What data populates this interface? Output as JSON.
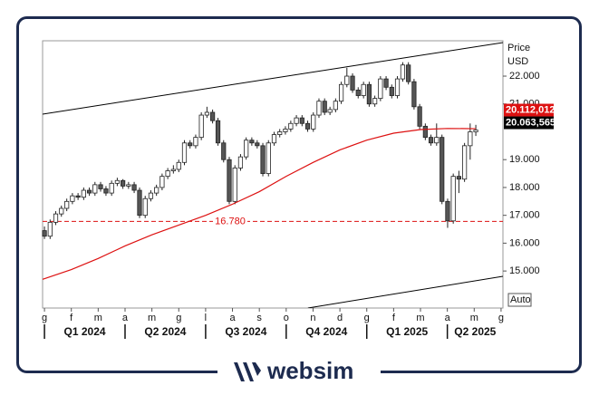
{
  "chart_data": {
    "type": "candlestick",
    "axis_labels": [
      "Price",
      "USD"
    ],
    "scale_mode": "Auto",
    "xlim": [
      -0.07,
      17.07
    ],
    "xticks": [
      {
        "value": 0,
        "label": "g"
      },
      {
        "value": 1,
        "label": "f"
      },
      {
        "value": 2,
        "label": "m"
      },
      {
        "value": 3,
        "label": "a"
      },
      {
        "value": 4,
        "label": "m"
      },
      {
        "value": 5,
        "label": "g"
      },
      {
        "value": 6,
        "label": "l"
      },
      {
        "value": 7,
        "label": "a"
      },
      {
        "value": 8,
        "label": "s"
      },
      {
        "value": 9,
        "label": "o"
      },
      {
        "value": 10,
        "label": "n"
      },
      {
        "value": 11,
        "label": "d"
      },
      {
        "value": 12,
        "label": "g"
      },
      {
        "value": 13,
        "label": "f"
      },
      {
        "value": 14,
        "label": "m"
      },
      {
        "value": 15,
        "label": "a"
      },
      {
        "value": 16,
        "label": "m"
      },
      {
        "value": 17,
        "label": "g"
      }
    ],
    "quarters": [
      {
        "value": 0,
        "label": "Q1 2024"
      },
      {
        "value": 3,
        "label": "Q2 2024"
      },
      {
        "value": 6,
        "label": "Q3 2024"
      },
      {
        "value": 9,
        "label": "Q4 2024"
      },
      {
        "value": 12,
        "label": "Q1 2025"
      },
      {
        "value": 15,
        "label": "Q2 2025"
      }
    ],
    "ylim": [
      13670,
      23270
    ],
    "yticks": [
      {
        "value": 15000,
        "label": "15.000"
      },
      {
        "value": 16000,
        "label": "16.000"
      },
      {
        "value": 17000,
        "label": "17.000"
      },
      {
        "value": 18000,
        "label": "18.000"
      },
      {
        "value": 19000,
        "label": "19.000"
      },
      {
        "value": 21000,
        "label": "21.000"
      },
      {
        "value": 22000,
        "label": "22.000"
      }
    ],
    "series": [
      {
        "up_color": "#ffffff",
        "down_color": "#555555",
        "x": [
          0,
          0.21,
          0.42,
          0.63,
          0.83,
          1.04,
          1.25,
          1.46,
          1.67,
          1.88,
          2.09,
          2.29,
          2.5,
          2.71,
          2.92,
          3.13,
          3.34,
          3.54,
          3.75,
          3.96,
          4.17,
          4.38,
          4.59,
          4.8,
          5,
          5.21,
          5.42,
          5.63,
          5.84,
          6.05,
          6.26,
          6.46,
          6.67,
          6.88,
          7.09,
          7.3,
          7.51,
          7.72,
          7.92,
          8.13,
          8.34,
          8.55,
          8.76,
          8.97,
          9.17,
          9.38,
          9.59,
          9.8,
          10.01,
          10.22,
          10.43,
          10.63,
          10.84,
          11.05,
          11.26,
          11.47,
          11.68,
          11.88,
          12.09,
          12.3,
          12.51,
          12.72,
          12.93,
          13.14,
          13.34,
          13.55,
          13.76,
          13.97,
          14.18,
          14.39,
          14.6,
          14.8,
          15.01,
          15.22,
          15.43,
          15.64,
          15.85,
          16.06
        ],
        "ohlc": [
          [
            16450,
            16600,
            16150,
            16250
          ],
          [
            16250,
            16850,
            16150,
            16750
          ],
          [
            16750,
            17150,
            16650,
            17050
          ],
          [
            17050,
            17350,
            16950,
            17250
          ],
          [
            17250,
            17600,
            17150,
            17500
          ],
          [
            17500,
            17800,
            17400,
            17700
          ],
          [
            17700,
            17800,
            17550,
            17650
          ],
          [
            17650,
            18000,
            17550,
            17900
          ],
          [
            17900,
            18000,
            17700,
            17800
          ],
          [
            17800,
            18200,
            17700,
            18100
          ],
          [
            18100,
            18200,
            17850,
            17950
          ],
          [
            17950,
            18050,
            17700,
            17800
          ],
          [
            17800,
            18250,
            17700,
            18150
          ],
          [
            18150,
            18350,
            18050,
            18250
          ],
          [
            18250,
            18300,
            17950,
            18050
          ],
          [
            18050,
            18200,
            17950,
            18100
          ],
          [
            18100,
            18200,
            17800,
            17900
          ],
          [
            17900,
            18000,
            16900,
            17000
          ],
          [
            17000,
            17700,
            16900,
            17600
          ],
          [
            17600,
            17900,
            17500,
            17800
          ],
          [
            17800,
            18100,
            17700,
            18000
          ],
          [
            18000,
            18500,
            17900,
            18400
          ],
          [
            18400,
            18700,
            18300,
            18600
          ],
          [
            18600,
            18800,
            18500,
            18650
          ],
          [
            18650,
            19000,
            18550,
            18900
          ],
          [
            18900,
            19700,
            18800,
            19600
          ],
          [
            19600,
            19700,
            19400,
            19500
          ],
          [
            19500,
            19900,
            19400,
            19800
          ],
          [
            19800,
            20700,
            19700,
            20600
          ],
          [
            20600,
            20900,
            20500,
            20700
          ],
          [
            20700,
            20800,
            20300,
            20400
          ],
          [
            20400,
            20500,
            19500,
            19600
          ],
          [
            19600,
            19700,
            18900,
            19000
          ],
          [
            19000,
            19100,
            17400,
            17500
          ],
          [
            17500,
            18800,
            17400,
            18700
          ],
          [
            18700,
            19200,
            18600,
            19100
          ],
          [
            19100,
            19800,
            19000,
            19700
          ],
          [
            19700,
            19800,
            19500,
            19600
          ],
          [
            19600,
            19700,
            19400,
            19500
          ],
          [
            19500,
            19600,
            18400,
            18500
          ],
          [
            18500,
            19700,
            18400,
            19600
          ],
          [
            19600,
            20000,
            19500,
            19900
          ],
          [
            19900,
            20100,
            19800,
            20000
          ],
          [
            20000,
            20200,
            19900,
            20100
          ],
          [
            20100,
            20400,
            20000,
            20300
          ],
          [
            20300,
            20600,
            20200,
            20500
          ],
          [
            20500,
            20600,
            20200,
            20300
          ],
          [
            20300,
            20400,
            20000,
            20100
          ],
          [
            20100,
            20700,
            20000,
            20600
          ],
          [
            20600,
            21200,
            20500,
            21100
          ],
          [
            21100,
            21200,
            20600,
            20700
          ],
          [
            20700,
            20900,
            20600,
            20800
          ],
          [
            20800,
            21200,
            20700,
            21100
          ],
          [
            21100,
            21800,
            21000,
            21700
          ],
          [
            21700,
            22300,
            21600,
            22000
          ],
          [
            22000,
            22100,
            21400,
            21500
          ],
          [
            21500,
            21600,
            21200,
            21300
          ],
          [
            21300,
            21800,
            21200,
            21700
          ],
          [
            21700,
            21800,
            20900,
            21000
          ],
          [
            21000,
            21300,
            20900,
            21200
          ],
          [
            21200,
            22000,
            21100,
            21900
          ],
          [
            21900,
            22000,
            21500,
            21600
          ],
          [
            21600,
            21700,
            21200,
            21300
          ],
          [
            21300,
            22000,
            21200,
            21900
          ],
          [
            21900,
            22500,
            21800,
            22400
          ],
          [
            22400,
            22500,
            21700,
            21800
          ],
          [
            21800,
            21900,
            20800,
            20900
          ],
          [
            20900,
            21000,
            20100,
            20200
          ],
          [
            20200,
            20300,
            19700,
            19800
          ],
          [
            19800,
            19900,
            19500,
            19600
          ],
          [
            19600,
            20300,
            19500,
            19800
          ],
          [
            19800,
            19900,
            17400,
            17500
          ],
          [
            17500,
            17600,
            16550,
            16800
          ],
          [
            16800,
            18500,
            16700,
            18400
          ],
          [
            18400,
            18600,
            17800,
            18300
          ],
          [
            18300,
            19600,
            18200,
            19500
          ],
          [
            19500,
            20300,
            19000,
            20000
          ],
          [
            20000,
            20250,
            19850,
            20063.565
          ]
        ],
        "last_value": 20063.565,
        "last_label": "20.063,565",
        "label_color": "#000000"
      },
      {
        "kind": "line",
        "color": "#dd1111",
        "x": [
          -0.07,
          1,
          2,
          3,
          4,
          5,
          6,
          7,
          8,
          9,
          10,
          11,
          12,
          13,
          14,
          15,
          16.06
        ],
        "values": [
          14700,
          15050,
          15450,
          15900,
          16300,
          16650,
          17000,
          17400,
          17850,
          18400,
          18900,
          19350,
          19700,
          19950,
          20080,
          20120,
          20112.012
        ],
        "last_value": 20112.012,
        "last_label": "20.112,012",
        "label_color": "#dd1111"
      }
    ],
    "trendlines": [
      {
        "x": [
          -0.07,
          17.07
        ],
        "y": [
          20635,
          23206
        ],
        "color": "#000000"
      },
      {
        "x": [
          9.81,
          17.07
        ],
        "y": [
          13670,
          14810
        ],
        "color": "#000000"
      }
    ],
    "hline": {
      "value": 16780,
      "label": "16.780",
      "color": "#dd1111"
    }
  },
  "footer": {
    "brand": "websim"
  }
}
